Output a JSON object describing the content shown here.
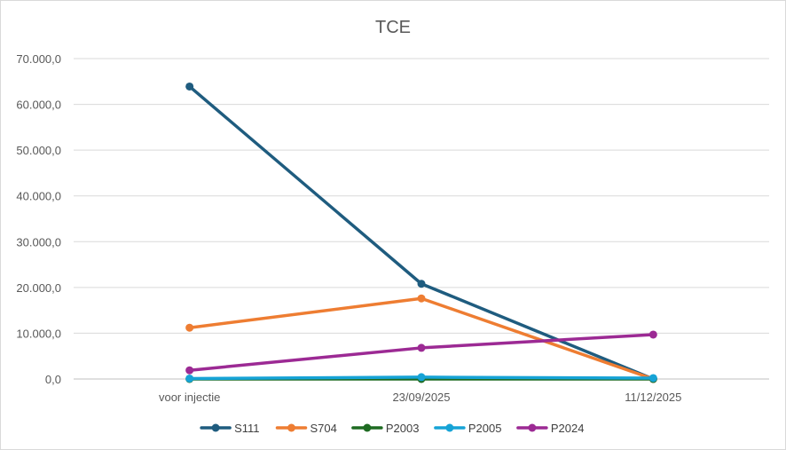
{
  "chart_data": {
    "type": "line",
    "title": "TCE",
    "categories": [
      "voor injectie",
      "23/09/2025",
      "11/12/2025"
    ],
    "y_tick_labels": [
      "0,0",
      "10.000,0",
      "20.000,0",
      "30.000,0",
      "40.000,0",
      "50.000,0",
      "60.000,0",
      "70.000,0"
    ],
    "ylim": [
      0,
      70000
    ],
    "y_tick_step": 10000,
    "grid": true,
    "legend_position": "bottom",
    "series": [
      {
        "name": "S111",
        "color": "#1f5c7f",
        "values": [
          63900,
          20800,
          0
        ]
      },
      {
        "name": "S704",
        "color": "#ee7d32",
        "values": [
          11200,
          17600,
          0
        ]
      },
      {
        "name": "P2003",
        "color": "#1e6b22",
        "values": [
          0,
          0,
          0
        ]
      },
      {
        "name": "P2005",
        "color": "#16a3d6",
        "values": [
          100,
          400,
          200
        ]
      },
      {
        "name": "P2024",
        "color": "#9c2a94",
        "values": [
          1900,
          6800,
          9700
        ]
      }
    ]
  }
}
